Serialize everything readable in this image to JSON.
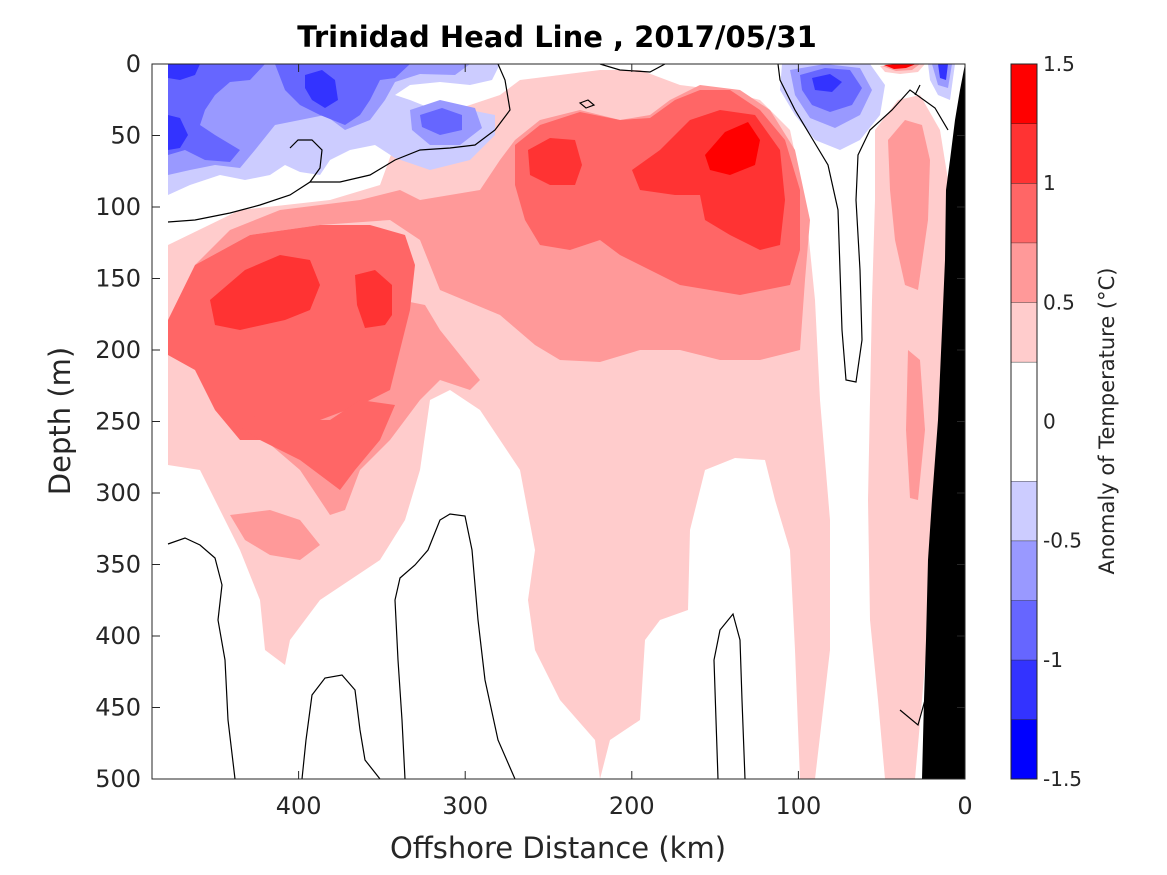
{
  "chart_data": {
    "type": "heatmap",
    "subtype": "filled contour section",
    "title": "Trinidad Head Line , 2017/05/31",
    "xlabel": "Offshore Distance (km)",
    "ylabel": "Depth (m)",
    "xlim": [
      488,
      0
    ],
    "ylim": [
      0,
      500
    ],
    "x_reversed": true,
    "y_reversed": true,
    "x_ticks": [
      400,
      300,
      200,
      100,
      0
    ],
    "y_ticks": [
      0,
      50,
      100,
      150,
      200,
      250,
      300,
      350,
      400,
      450,
      500
    ],
    "grid": false,
    "colorbar": {
      "label": "Anomaly of Temperature (°C)",
      "position": "right",
      "range": [
        -1.5,
        1.5
      ],
      "ticks": [
        1.5,
        1,
        0.5,
        0,
        -0.5,
        -1,
        -1.5
      ],
      "levels": [
        -1.5,
        -1.25,
        -1.0,
        -0.75,
        -0.5,
        -0.25,
        0.25,
        0.5,
        0.75,
        1.0,
        1.25,
        1.5
      ],
      "colors": [
        "#0000ff",
        "#3333ff",
        "#6666ff",
        "#9999ff",
        "#ccccff",
        "#ffffff",
        "#ffcccc",
        "#ff9999",
        "#ff6666",
        "#ff3333",
        "#ff0000"
      ]
    },
    "seafloor_color": "#000000",
    "zero_contour_color": "#000000",
    "features": [
      {
        "label": "warm core",
        "x_km": 410,
        "depth_m": 175,
        "anomaly": 1.25
      },
      {
        "label": "warm core",
        "x_km": 355,
        "depth_m": 165,
        "anomaly": 1.1
      },
      {
        "label": "warm core",
        "x_km": 235,
        "depth_m": 70,
        "anomaly": 1.1
      },
      {
        "label": "warm core",
        "x_km": 135,
        "depth_m": 65,
        "anomaly": 1.3
      },
      {
        "label": "cold surface",
        "x_km": 470,
        "depth_m": 40,
        "anomaly": -0.8
      },
      {
        "label": "cold surface",
        "x_km": 375,
        "depth_m": 20,
        "anomaly": -0.9
      },
      {
        "label": "cold surface",
        "x_km": 305,
        "depth_m": 40,
        "anomaly": -0.6
      },
      {
        "label": "cold surface",
        "x_km": 85,
        "depth_m": 25,
        "anomaly": -0.9
      }
    ]
  }
}
